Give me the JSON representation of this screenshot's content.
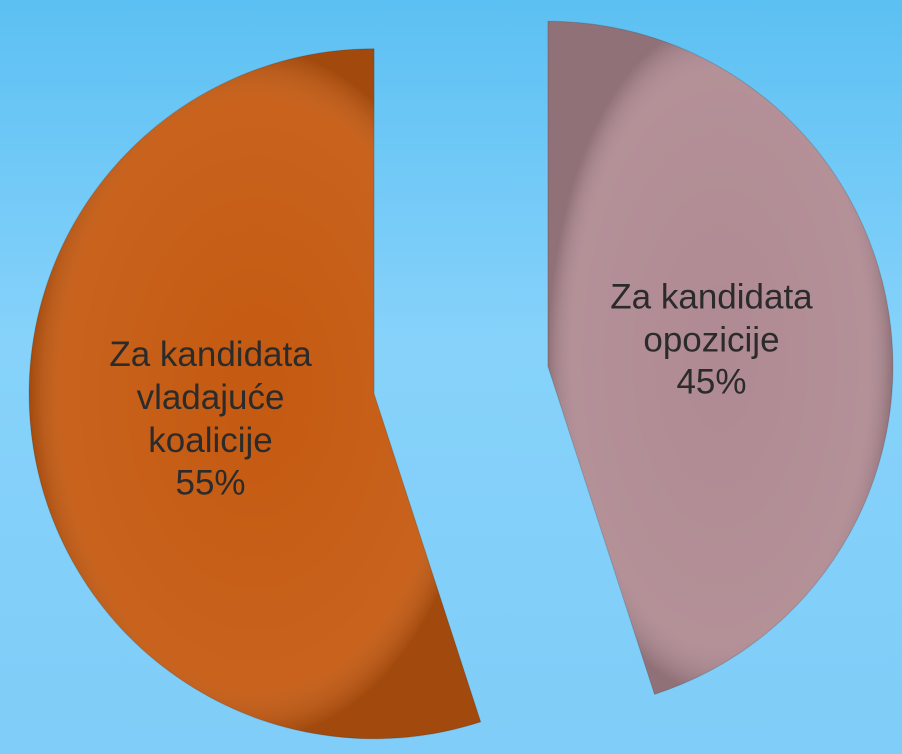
{
  "chart_data": {
    "type": "pie",
    "categories": [
      "Za kandidata opozicije",
      "Za kandidata vladajuće koalicije"
    ],
    "values": [
      45,
      55
    ],
    "value_labels": [
      "45%",
      "55%"
    ],
    "colors": [
      "#b08a92",
      "#c55a11"
    ]
  }
}
